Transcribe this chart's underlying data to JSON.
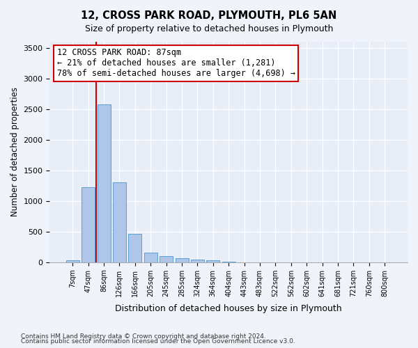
{
  "title1": "12, CROSS PARK ROAD, PLYMOUTH, PL6 5AN",
  "title2": "Size of property relative to detached houses in Plymouth",
  "xlabel": "Distribution of detached houses by size in Plymouth",
  "ylabel": "Number of detached properties",
  "bin_labels": [
    "7sqm",
    "47sqm",
    "86sqm",
    "126sqm",
    "166sqm",
    "205sqm",
    "245sqm",
    "285sqm",
    "324sqm",
    "364sqm",
    "404sqm",
    "443sqm",
    "483sqm",
    "522sqm",
    "562sqm",
    "602sqm",
    "641sqm",
    "681sqm",
    "721sqm",
    "760sqm",
    "800sqm"
  ],
  "bar_values": [
    30,
    1220,
    2580,
    1300,
    460,
    160,
    100,
    60,
    40,
    30,
    5,
    0,
    0,
    0,
    0,
    0,
    0,
    0,
    0,
    0,
    0
  ],
  "bar_color": "#aec6e8",
  "bar_edge_color": "#5a9fd4",
  "property_sqm": 87,
  "annotation_text": "12 CROSS PARK ROAD: 87sqm\n← 21% of detached houses are smaller (1,281)\n78% of semi-detached houses are larger (4,698) →",
  "annotation_box_color": "#cc0000",
  "ylim": [
    0,
    3600
  ],
  "yticks": [
    0,
    500,
    1000,
    1500,
    2000,
    2500,
    3000,
    3500
  ],
  "footnote1": "Contains HM Land Registry data © Crown copyright and database right 2024.",
  "footnote2": "Contains public sector information licensed under the Open Government Licence v3.0.",
  "background_color": "#f0f4fa",
  "plot_bg_color": "#e8eef8",
  "red_line_x": 1.5
}
